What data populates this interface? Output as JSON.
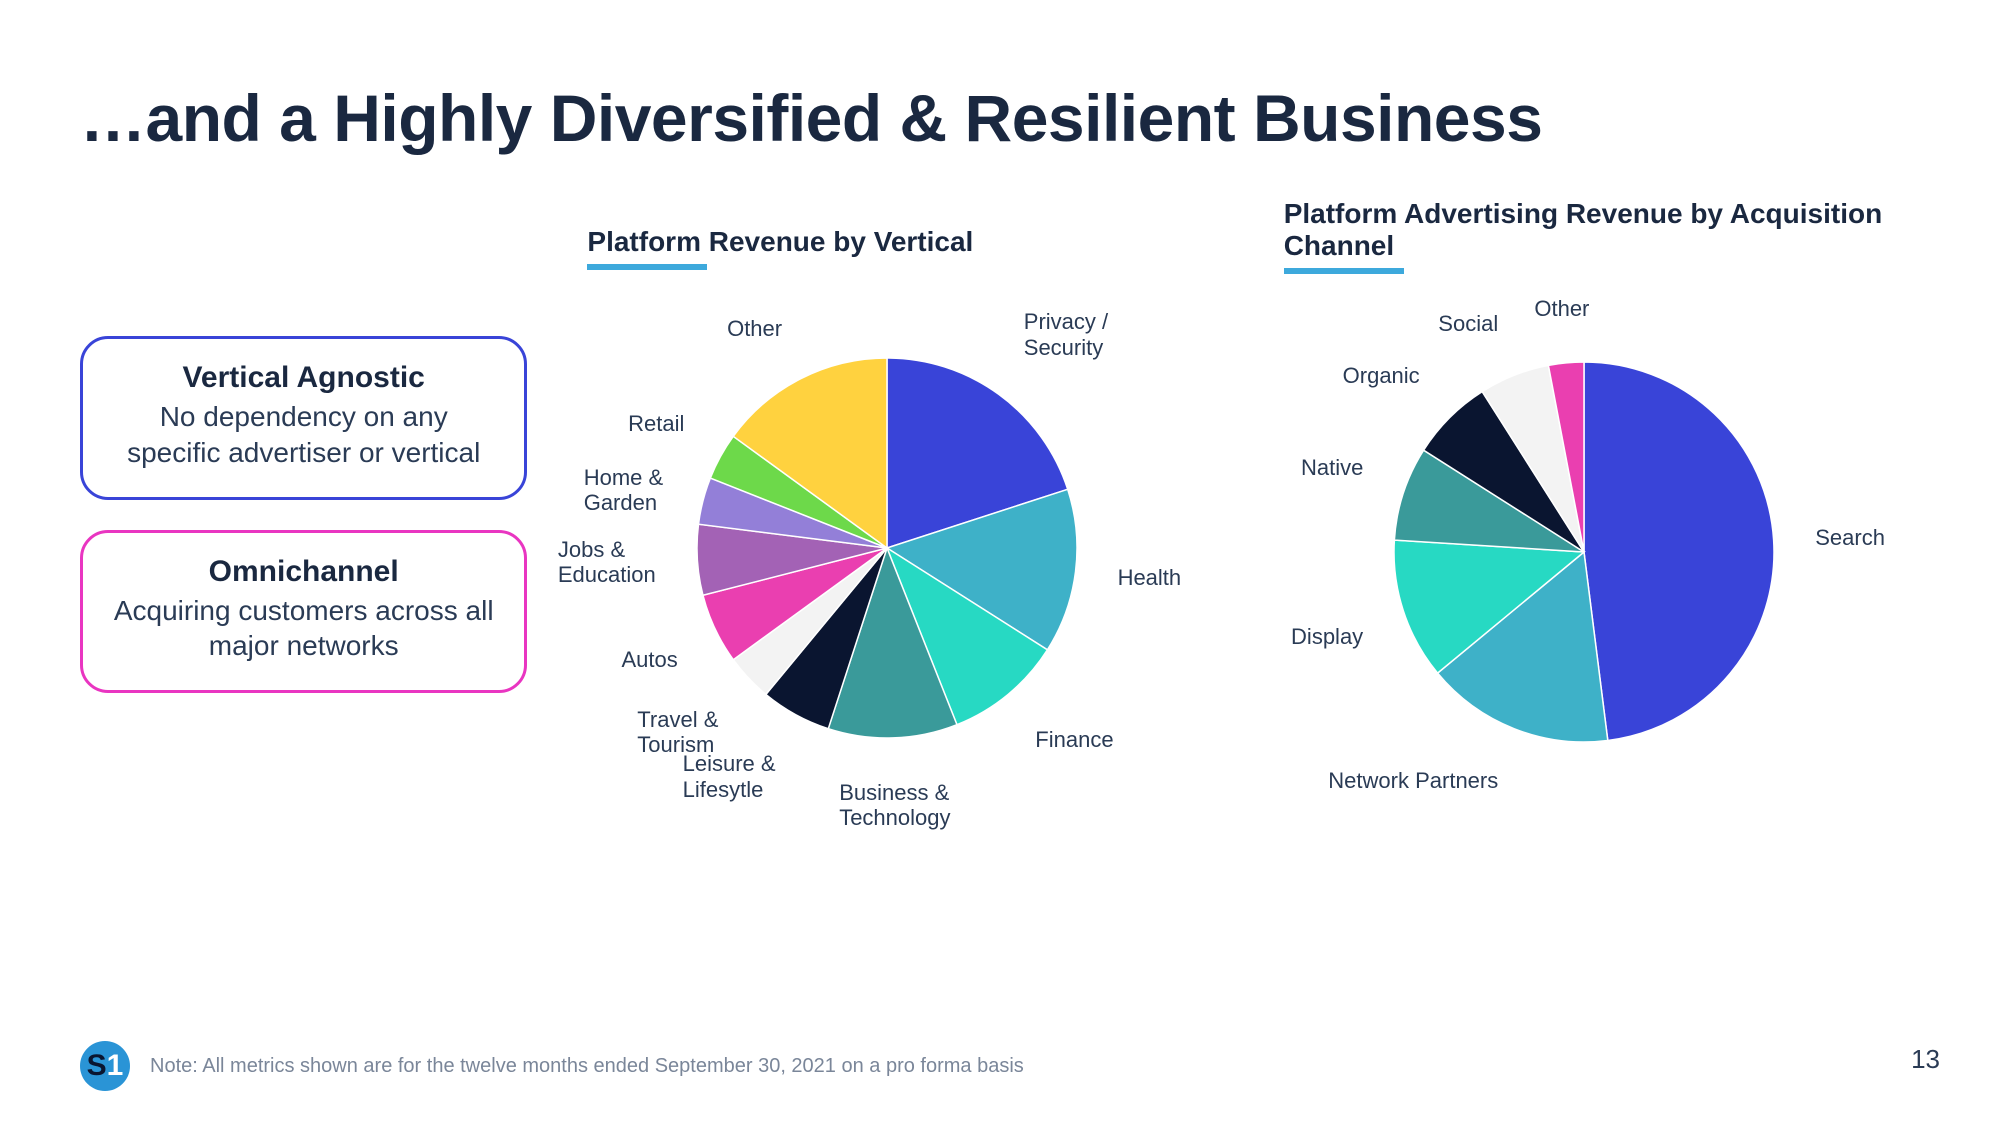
{
  "title": "…and a Highly Diversified & Resilient Business",
  "callouts": [
    {
      "head": "Vertical Agnostic",
      "body": "No dependency on any specific advertiser or vertical",
      "border": "#3944d8"
    },
    {
      "head": "Omnichannel",
      "body": "Acquiring customers across all major networks",
      "border": "#e935c1"
    }
  ],
  "chart1": {
    "type": "pie",
    "title": "Platform Revenue by Vertical",
    "underline_color": "#3da9dc",
    "radius": 190,
    "label_radius": 232,
    "title_fontsize": 28,
    "label_fontsize": 22,
    "background_color": "#ffffff",
    "slices": [
      {
        "label": "Privacy /\nSecurity",
        "value": 20,
        "color": "#3944d8"
      },
      {
        "label": "Health",
        "value": 14,
        "color": "#3eb1c8"
      },
      {
        "label": "Finance",
        "value": 10,
        "color": "#27d9c3"
      },
      {
        "label": "Business &\nTechnology",
        "value": 11,
        "color": "#3a9a9a"
      },
      {
        "label": "Leisure &\nLifesytle",
        "value": 6,
        "color": "#0a1530"
      },
      {
        "label": "Travel &\nTourism",
        "value": 4,
        "color": "#f3f3f3"
      },
      {
        "label": "Autos",
        "value": 6,
        "color": "#ea3fb0"
      },
      {
        "label": "Jobs &\nEducation",
        "value": 6,
        "color": "#a362b5"
      },
      {
        "label": "Home &\nGarden",
        "value": 4,
        "color": "#937fd8"
      },
      {
        "label": "Retail",
        "value": 4,
        "color": "#6dd94a"
      },
      {
        "label": "Other",
        "value": 15,
        "color": "#ffd23f"
      }
    ]
  },
  "chart2": {
    "type": "pie",
    "title": "Platform Advertising Revenue by Acquisition Channel",
    "underline_color": "#3da9dc",
    "radius": 190,
    "label_radius": 232,
    "title_fontsize": 28,
    "label_fontsize": 22,
    "background_color": "#ffffff",
    "slices": [
      {
        "label": "Search",
        "value": 48,
        "color": "#3944d8"
      },
      {
        "label": "Network Partners",
        "value": 16,
        "color": "#3eb1c8"
      },
      {
        "label": "Display",
        "value": 12,
        "color": "#27d9c3"
      },
      {
        "label": "Native",
        "value": 8,
        "color": "#3a9a9a"
      },
      {
        "label": "Organic",
        "value": 7,
        "color": "#0a1530"
      },
      {
        "label": "Social",
        "value": 6,
        "color": "#f3f3f3"
      },
      {
        "label": "Other",
        "value": 3,
        "color": "#ea3fb0"
      }
    ]
  },
  "footnote": "Note: All metrics shown are for the twelve months ended September 30, 2021 on a pro forma basis",
  "page_number": "13",
  "logo": {
    "s": "S",
    "one": "1",
    "bg": "#2a94d6"
  }
}
